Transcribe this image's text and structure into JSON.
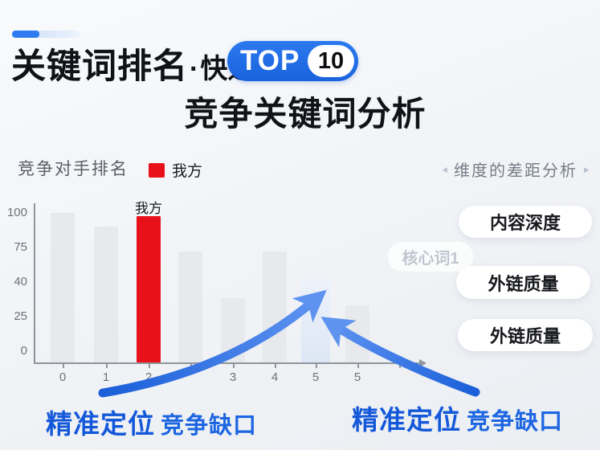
{
  "title": {
    "main": "关键词排名",
    "dot": "·",
    "qualifier": "快速",
    "badge_label": "TOP",
    "badge_value": "10",
    "subtitle": "竞争关键词分析"
  },
  "chart_data": {
    "type": "bar",
    "title": "竞争对手排名",
    "legend": [
      {
        "label": "我方",
        "color": "#e8111a"
      }
    ],
    "categories": [
      "0",
      "1",
      "2",
      "",
      "3",
      "4",
      "5",
      "5"
    ],
    "values": [
      100,
      91,
      98,
      74,
      43,
      74,
      56,
      38
    ],
    "bar_roles": [
      "default",
      "default",
      "highlight-red",
      "default",
      "default",
      "default",
      "highlight-blue",
      "default"
    ],
    "bar_annotation": {
      "index": 2,
      "text": "我方"
    },
    "ytick_labels": [
      "100",
      "75",
      "40",
      "25",
      "0"
    ],
    "ylim": [
      0,
      100
    ],
    "xlabel": "",
    "ylabel": "",
    "grid": false,
    "legend_position": "top",
    "colors": {
      "default": "#e7e9ec",
      "highlight-red": "#e8111a",
      "highlight-blue": "#dbe5f6"
    }
  },
  "panel": {
    "prev_arrow": "◂",
    "header": "维度的差距分析",
    "next_arrow": "▸",
    "pills": [
      "内容深度",
      "外链质量",
      "外链质量"
    ],
    "ghost_chip": "核心词1"
  },
  "callouts": {
    "left": {
      "emphasis": "精准定位",
      "text": "竞争缺口"
    },
    "right": {
      "emphasis": "精准定位",
      "text": "竞争缺口"
    }
  },
  "colors": {
    "accent_blue": "#1d6ce5",
    "arrow_blue": "#2a72ea",
    "callout_blue": "#1560dc",
    "red": "#e8111a"
  }
}
